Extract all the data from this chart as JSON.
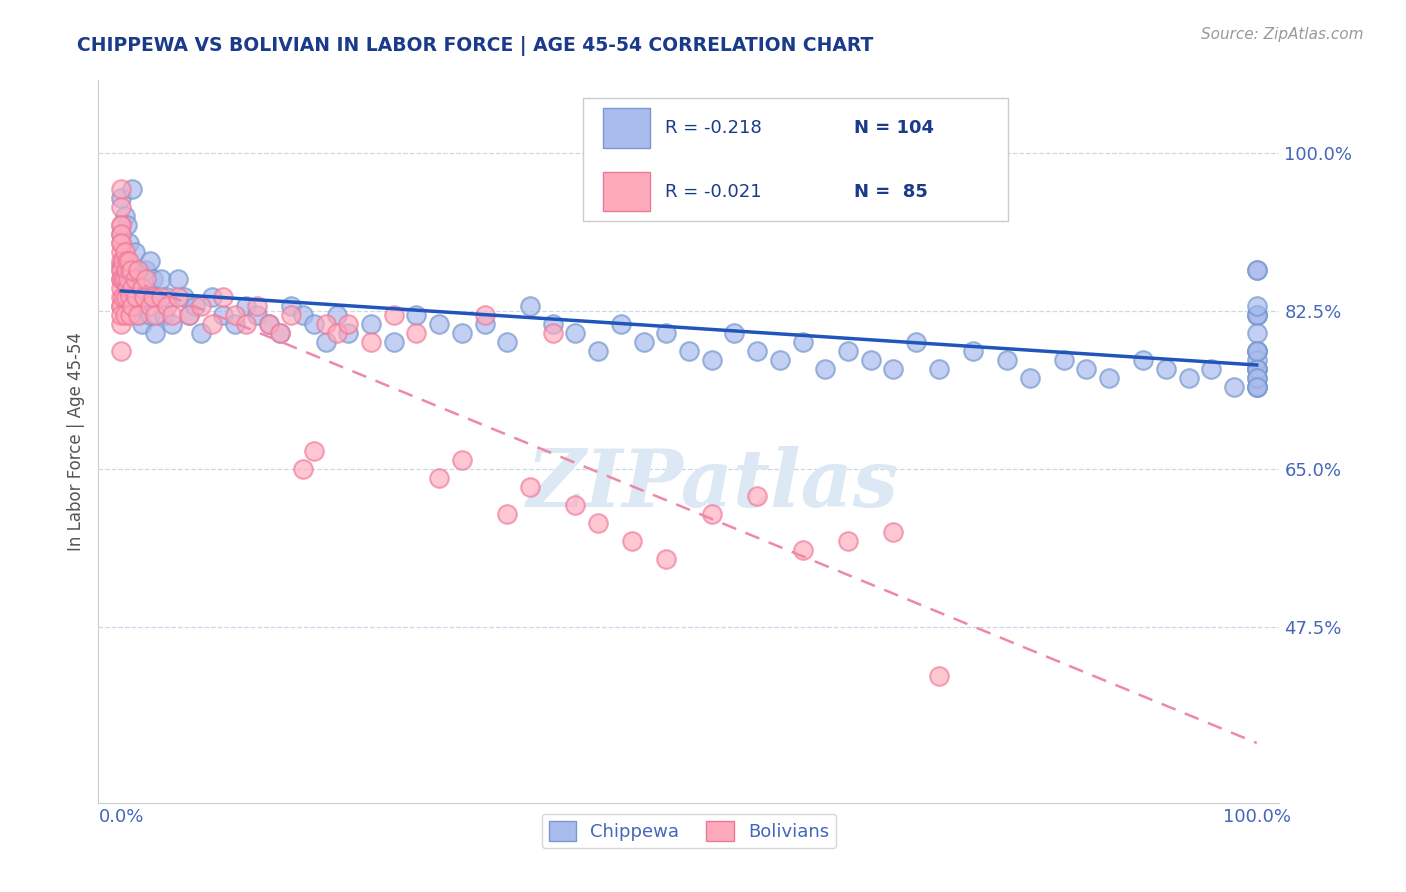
{
  "title": "CHIPPEWA VS BOLIVIAN IN LABOR FORCE | AGE 45-54 CORRELATION CHART",
  "source_text": "Source: ZipAtlas.com",
  "ylabel": "In Labor Force | Age 45-54",
  "xlim": [
    -0.02,
    1.02
  ],
  "ylim": [
    0.28,
    1.08
  ],
  "ytick_vals": [
    0.475,
    0.65,
    0.825,
    1.0
  ],
  "ytick_labels": [
    "47.5%",
    "65.0%",
    "82.5%",
    "100.0%"
  ],
  "xtick_vals": [
    0.0,
    1.0
  ],
  "xtick_labels": [
    "0.0%",
    "100.0%"
  ],
  "title_color": "#1a3a8a",
  "source_color": "#999999",
  "axis_label_color": "#555555",
  "tick_color": "#4466bb",
  "grid_color": "#c8d8ee",
  "background_color": "#ffffff",
  "watermark_text": "ZIPatlas",
  "watermark_color": "#dde8f5",
  "blue_scatter_color": "#aabbee",
  "blue_edge_color": "#7799cc",
  "pink_scatter_color": "#ffaabb",
  "pink_edge_color": "#ee7799",
  "blue_line_color": "#2255bb",
  "pink_line_color": "#ee88aa",
  "legend_label1": "Chippewa",
  "legend_label2": "Bolivians",
  "chippewa_x": [
    0.0,
    0.0,
    0.0,
    0.003,
    0.003,
    0.003,
    0.005,
    0.005,
    0.007,
    0.007,
    0.01,
    0.01,
    0.01,
    0.012,
    0.012,
    0.015,
    0.015,
    0.018,
    0.018,
    0.02,
    0.022,
    0.025,
    0.025,
    0.028,
    0.03,
    0.03,
    0.035,
    0.038,
    0.04,
    0.045,
    0.05,
    0.055,
    0.06,
    0.065,
    0.07,
    0.08,
    0.09,
    0.1,
    0.11,
    0.12,
    0.13,
    0.14,
    0.15,
    0.16,
    0.17,
    0.18,
    0.19,
    0.2,
    0.22,
    0.24,
    0.26,
    0.28,
    0.3,
    0.32,
    0.34,
    0.36,
    0.38,
    0.4,
    0.42,
    0.44,
    0.46,
    0.48,
    0.5,
    0.52,
    0.54,
    0.56,
    0.58,
    0.6,
    0.62,
    0.64,
    0.66,
    0.68,
    0.7,
    0.72,
    0.75,
    0.78,
    0.8,
    0.83,
    0.85,
    0.87,
    0.9,
    0.92,
    0.94,
    0.96,
    0.98,
    1.0,
    1.0,
    1.0,
    1.0,
    1.0,
    1.0,
    1.0,
    1.0,
    1.0,
    1.0,
    1.0,
    1.0,
    1.0,
    1.0,
    1.0,
    1.0,
    1.0,
    1.0,
    1.0
  ],
  "chippewa_y": [
    0.875,
    0.91,
    0.95,
    0.93,
    0.88,
    0.84,
    0.86,
    0.92,
    0.85,
    0.9,
    0.87,
    0.84,
    0.96,
    0.83,
    0.89,
    0.82,
    0.87,
    0.85,
    0.81,
    0.84,
    0.87,
    0.82,
    0.88,
    0.86,
    0.84,
    0.8,
    0.86,
    0.82,
    0.84,
    0.81,
    0.86,
    0.84,
    0.82,
    0.83,
    0.8,
    0.84,
    0.82,
    0.81,
    0.83,
    0.82,
    0.81,
    0.8,
    0.83,
    0.82,
    0.81,
    0.79,
    0.82,
    0.8,
    0.81,
    0.79,
    0.82,
    0.81,
    0.8,
    0.81,
    0.79,
    0.83,
    0.81,
    0.8,
    0.78,
    0.81,
    0.79,
    0.8,
    0.78,
    0.77,
    0.8,
    0.78,
    0.77,
    0.79,
    0.76,
    0.78,
    0.77,
    0.76,
    0.79,
    0.76,
    0.78,
    0.77,
    0.75,
    0.77,
    0.76,
    0.75,
    0.77,
    0.76,
    0.75,
    0.76,
    0.74,
    0.87,
    0.82,
    0.78,
    0.76,
    0.74,
    0.82,
    0.78,
    0.76,
    0.74,
    0.87,
    0.82,
    0.8,
    0.77,
    0.75,
    0.83,
    0.76,
    0.78,
    0.75,
    0.74
  ],
  "bolivian_x": [
    0.0,
    0.0,
    0.0,
    0.0,
    0.0,
    0.0,
    0.0,
    0.0,
    0.0,
    0.0,
    0.0,
    0.0,
    0.0,
    0.0,
    0.0,
    0.0,
    0.0,
    0.0,
    0.0,
    0.0,
    0.002,
    0.002,
    0.002,
    0.003,
    0.003,
    0.003,
    0.004,
    0.004,
    0.005,
    0.005,
    0.006,
    0.007,
    0.008,
    0.008,
    0.009,
    0.01,
    0.01,
    0.012,
    0.013,
    0.015,
    0.015,
    0.018,
    0.02,
    0.022,
    0.025,
    0.028,
    0.03,
    0.035,
    0.04,
    0.045,
    0.05,
    0.06,
    0.07,
    0.08,
    0.09,
    0.1,
    0.11,
    0.12,
    0.13,
    0.14,
    0.15,
    0.16,
    0.17,
    0.18,
    0.19,
    0.2,
    0.22,
    0.24,
    0.26,
    0.28,
    0.3,
    0.32,
    0.34,
    0.36,
    0.38,
    0.4,
    0.42,
    0.45,
    0.48,
    0.52,
    0.56,
    0.6,
    0.64,
    0.68,
    0.72
  ],
  "bolivian_y": [
    0.9,
    0.96,
    0.87,
    0.83,
    0.92,
    0.89,
    0.84,
    0.86,
    0.94,
    0.81,
    0.88,
    0.92,
    0.85,
    0.78,
    0.87,
    0.91,
    0.83,
    0.86,
    0.9,
    0.82,
    0.88,
    0.86,
    0.84,
    0.89,
    0.86,
    0.82,
    0.87,
    0.84,
    0.88,
    0.85,
    0.86,
    0.88,
    0.84,
    0.82,
    0.87,
    0.85,
    0.83,
    0.86,
    0.84,
    0.87,
    0.82,
    0.85,
    0.84,
    0.86,
    0.83,
    0.84,
    0.82,
    0.84,
    0.83,
    0.82,
    0.84,
    0.82,
    0.83,
    0.81,
    0.84,
    0.82,
    0.81,
    0.83,
    0.81,
    0.8,
    0.82,
    0.65,
    0.67,
    0.81,
    0.8,
    0.81,
    0.79,
    0.82,
    0.8,
    0.64,
    0.66,
    0.82,
    0.6,
    0.63,
    0.8,
    0.61,
    0.59,
    0.57,
    0.55,
    0.6,
    0.62,
    0.56,
    0.57,
    0.58,
    0.42
  ]
}
